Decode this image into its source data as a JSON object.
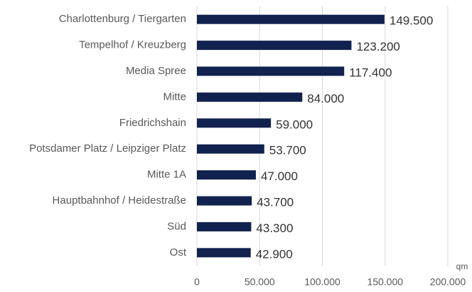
{
  "chart_data": {
    "type": "hbar",
    "axis_label": "qm",
    "categories": [
      "Charlottenburg / Tiergarten",
      "Tempelhof / Kreuzberg",
      "Media Spree",
      "Mitte",
      "Friedrichshain",
      "Potsdamer Platz / Leipziger Platz",
      "Mitte 1A",
      "Hauptbahnhof / Heidestraße",
      "Süd",
      "Ost"
    ],
    "values": [
      149500,
      123200,
      117400,
      84000,
      59000,
      53700,
      47000,
      43700,
      43300,
      42900
    ],
    "value_labels": [
      "149.500",
      "123.200",
      "117.400",
      "84.000",
      "59.000",
      "53.700",
      "47.000",
      "43.700",
      "43.300",
      "42.900"
    ],
    "color": "#12224f",
    "xlim": [
      0,
      200000
    ],
    "xticks": [
      0,
      {
        "value": 50000,
        "label": "50.000"
      },
      {
        "value": 100000,
        "label": "100.000"
      },
      {
        "value": 150000,
        "label": "150.000"
      },
      {
        "value": 200000,
        "label": "200.000"
      }
    ],
    "grid": true
  }
}
